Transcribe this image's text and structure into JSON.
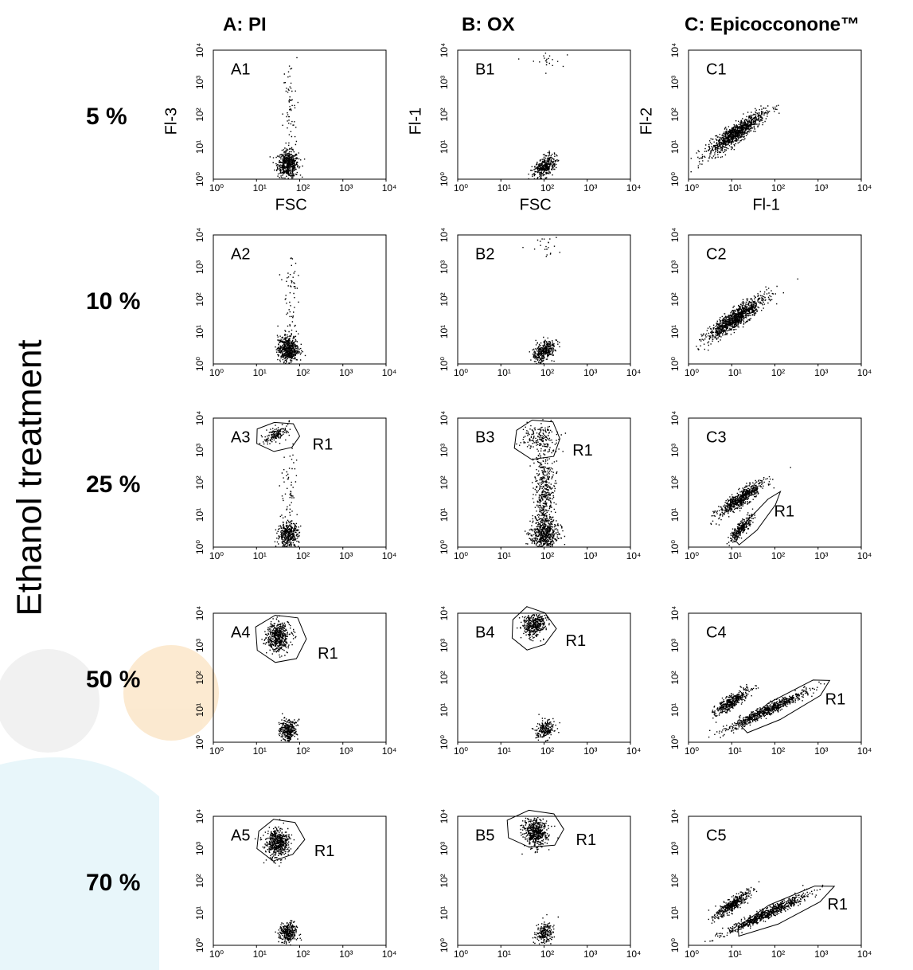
{
  "title": "Ethanol treatment",
  "columns": [
    {
      "title": "A: PI"
    },
    {
      "title": "B: OX"
    },
    {
      "title": "C: Epicocconone™"
    }
  ],
  "rows": [
    {
      "label": "5 %"
    },
    {
      "label": "10 %"
    },
    {
      "label": "25 %"
    },
    {
      "label": "50 %"
    },
    {
      "label": "70 %"
    }
  ],
  "ticks": [
    "10⁰",
    "10¹",
    "10²",
    "10³",
    "10⁴"
  ],
  "panels": [
    [
      {
        "label": "A1",
        "y_label": "Fl-3",
        "x_label": "FSC"
      },
      {
        "label": "B1",
        "y_label": "Fl-1",
        "x_label": "FSC"
      },
      {
        "label": "C1",
        "y_label": "Fl-2",
        "x_label": "Fl-1"
      }
    ],
    [
      {
        "label": "A2"
      },
      {
        "label": "B2"
      },
      {
        "label": "C2"
      }
    ],
    [
      {
        "label": "A3",
        "gate": "R1"
      },
      {
        "label": "B3",
        "gate": "R1"
      },
      {
        "label": "C3",
        "gate": "R1"
      }
    ],
    [
      {
        "label": "A4",
        "gate": "R1"
      },
      {
        "label": "B4",
        "gate": "R1"
      },
      {
        "label": "C4",
        "gate": "R1"
      }
    ],
    [
      {
        "label": "A5",
        "gate": "R1"
      },
      {
        "label": "B5",
        "gate": "R1"
      },
      {
        "label": "C5",
        "gate": "R1"
      }
    ]
  ]
}
